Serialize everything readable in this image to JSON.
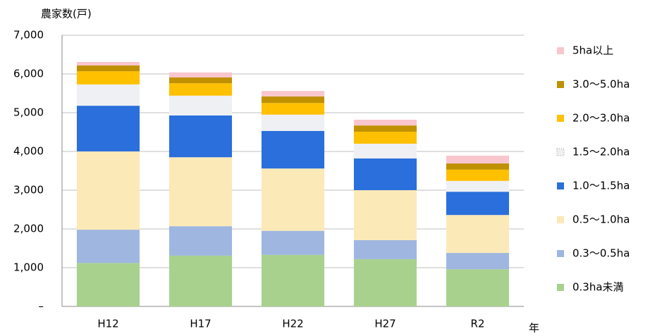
{
  "chart_data": {
    "type": "stacked_bar",
    "y_label": "農家数(戸)",
    "x_label": "年",
    "categories": [
      "H12",
      "H17",
      "H22",
      "H27",
      "R2"
    ],
    "series": [
      {
        "name": "0.3ha未満",
        "color": "#a9d18e",
        "values": [
          1120,
          1310,
          1330,
          1220,
          960
        ]
      },
      {
        "name": "0.3～0.5ha",
        "color": "#9fb6e0",
        "values": [
          860,
          760,
          620,
          490,
          420
        ]
      },
      {
        "name": "0.5～1.0ha",
        "color": "#fbe9b8",
        "values": [
          2020,
          1780,
          1610,
          1290,
          980
        ]
      },
      {
        "name": "1.0～1.5ha",
        "color": "#2a6fdb",
        "values": [
          1180,
          1080,
          970,
          820,
          600
        ]
      },
      {
        "name": "1.5～2.0ha",
        "color": "#eef0f4",
        "values": [
          550,
          510,
          420,
          380,
          280
        ]
      },
      {
        "name": "2.0～3.0ha",
        "color": "#ffc000",
        "values": [
          340,
          320,
          300,
          310,
          290
        ]
      },
      {
        "name": "3.0～5.0ha",
        "color": "#bf9000",
        "values": [
          150,
          150,
          170,
          160,
          160
        ]
      },
      {
        "name": "5ha以上",
        "color": "#f8c6cc",
        "values": [
          90,
          130,
          140,
          150,
          200
        ]
      }
    ],
    "ylim": [
      0,
      7000
    ],
    "yticks": [
      {
        "value": 0,
        "label": "–"
      },
      {
        "value": 1000,
        "label": "1,000"
      },
      {
        "value": 2000,
        "label": "2,000"
      },
      {
        "value": 3000,
        "label": "3,000"
      },
      {
        "value": 4000,
        "label": "4,000"
      },
      {
        "value": 5000,
        "label": "5,000"
      },
      {
        "value": 6000,
        "label": "6,000"
      },
      {
        "value": 7000,
        "label": "7,000"
      }
    ],
    "grid": true,
    "legend": "right"
  }
}
